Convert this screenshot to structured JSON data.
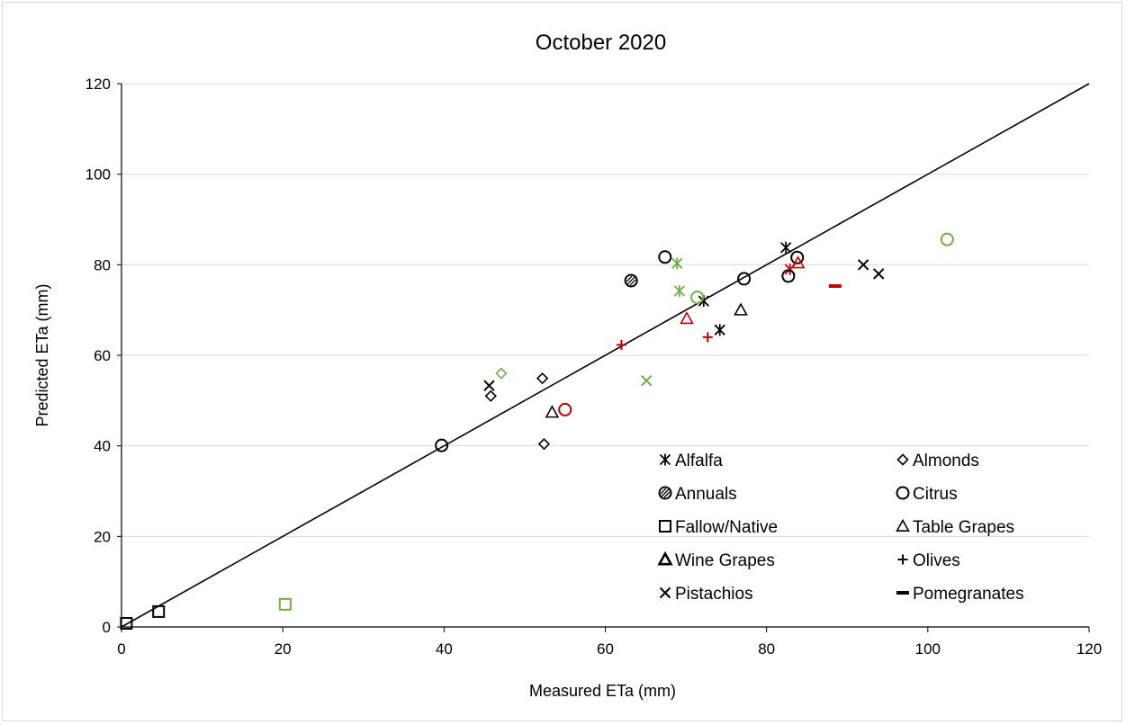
{
  "chart_data": {
    "type": "scatter",
    "title": "October 2020",
    "xlabel": "Measured ETa (mm)",
    "ylabel": "Predicted ETa (mm)",
    "xlim": [
      0,
      120
    ],
    "ylim": [
      0,
      120
    ],
    "xticks": [
      "0",
      "20",
      "40",
      "60",
      "80",
      "100",
      "120"
    ],
    "yticks": [
      "0",
      "20",
      "40",
      "60",
      "80",
      "100",
      "120"
    ],
    "grid": "horizontal",
    "legend": "bottom-right inside plot",
    "reference_line": {
      "x": [
        0,
        120
      ],
      "y": [
        0,
        120
      ]
    },
    "colors": {
      "black": "#000000",
      "green": "#70ad47",
      "red": "#c00000"
    },
    "series": [
      {
        "name": "Alfalfa",
        "marker": "asterisk",
        "points": [
          {
            "x": 82.4,
            "y": 83.8,
            "color": "black"
          },
          {
            "x": 72.2,
            "y": 72.0,
            "color": "black"
          },
          {
            "x": 74.2,
            "y": 65.6,
            "color": "black"
          },
          {
            "x": 68.9,
            "y": 80.3,
            "color": "green"
          },
          {
            "x": 69.2,
            "y": 74.2,
            "color": "green"
          },
          {
            "x": 82.9,
            "y": 79.0,
            "color": "red"
          }
        ]
      },
      {
        "name": "Almonds",
        "marker": "diamond",
        "points": [
          {
            "x": 45.8,
            "y": 51.0,
            "color": "black"
          },
          {
            "x": 52.2,
            "y": 54.9,
            "color": "black"
          },
          {
            "x": 52.4,
            "y": 40.4,
            "color": "black"
          },
          {
            "x": 47.1,
            "y": 56.0,
            "color": "green"
          }
        ]
      },
      {
        "name": "Annuals",
        "marker": "hatched-circle",
        "points": [
          {
            "x": 63.2,
            "y": 76.5,
            "color": "black"
          }
        ]
      },
      {
        "name": "Citrus",
        "marker": "circle",
        "points": [
          {
            "x": 39.7,
            "y": 40.1,
            "color": "black"
          },
          {
            "x": 67.4,
            "y": 81.7,
            "color": "black"
          },
          {
            "x": 77.2,
            "y": 76.9,
            "color": "black"
          },
          {
            "x": 82.7,
            "y": 77.5,
            "color": "black"
          },
          {
            "x": 83.8,
            "y": 81.6,
            "color": "black"
          },
          {
            "x": 71.4,
            "y": 72.8,
            "color": "green"
          },
          {
            "x": 102.4,
            "y": 85.6,
            "color": "green"
          },
          {
            "x": 55.0,
            "y": 48.0,
            "color": "red"
          }
        ]
      },
      {
        "name": "Fallow/Native",
        "marker": "square",
        "points": [
          {
            "x": 0.6,
            "y": 0.8,
            "color": "black"
          },
          {
            "x": 4.6,
            "y": 3.4,
            "color": "black"
          },
          {
            "x": 20.3,
            "y": 5.0,
            "color": "green"
          }
        ]
      },
      {
        "name": "Table Grapes",
        "marker": "triangle",
        "points": [
          {
            "x": 53.4,
            "y": 47.4,
            "color": "black"
          },
          {
            "x": 76.8,
            "y": 70.0,
            "color": "black"
          },
          {
            "x": 70.1,
            "y": 68.1,
            "color": "red"
          },
          {
            "x": 83.9,
            "y": 80.4,
            "color": "red"
          }
        ]
      },
      {
        "name": "Wine Grapes",
        "marker": "bold-triangle",
        "points": []
      },
      {
        "name": "Olives",
        "marker": "plus",
        "points": [
          {
            "x": 62.0,
            "y": 62.3,
            "color": "red"
          },
          {
            "x": 72.7,
            "y": 64.0,
            "color": "red"
          }
        ]
      },
      {
        "name": "Pistachios",
        "marker": "x",
        "points": [
          {
            "x": 45.6,
            "y": 53.3,
            "color": "black"
          },
          {
            "x": 92.0,
            "y": 80.0,
            "color": "black"
          },
          {
            "x": 93.9,
            "y": 78.0,
            "color": "black"
          },
          {
            "x": 65.1,
            "y": 54.4,
            "color": "green"
          }
        ]
      },
      {
        "name": "Pomegranates",
        "marker": "dash",
        "points": [
          {
            "x": 88.5,
            "y": 75.3,
            "color": "red"
          }
        ]
      }
    ]
  }
}
